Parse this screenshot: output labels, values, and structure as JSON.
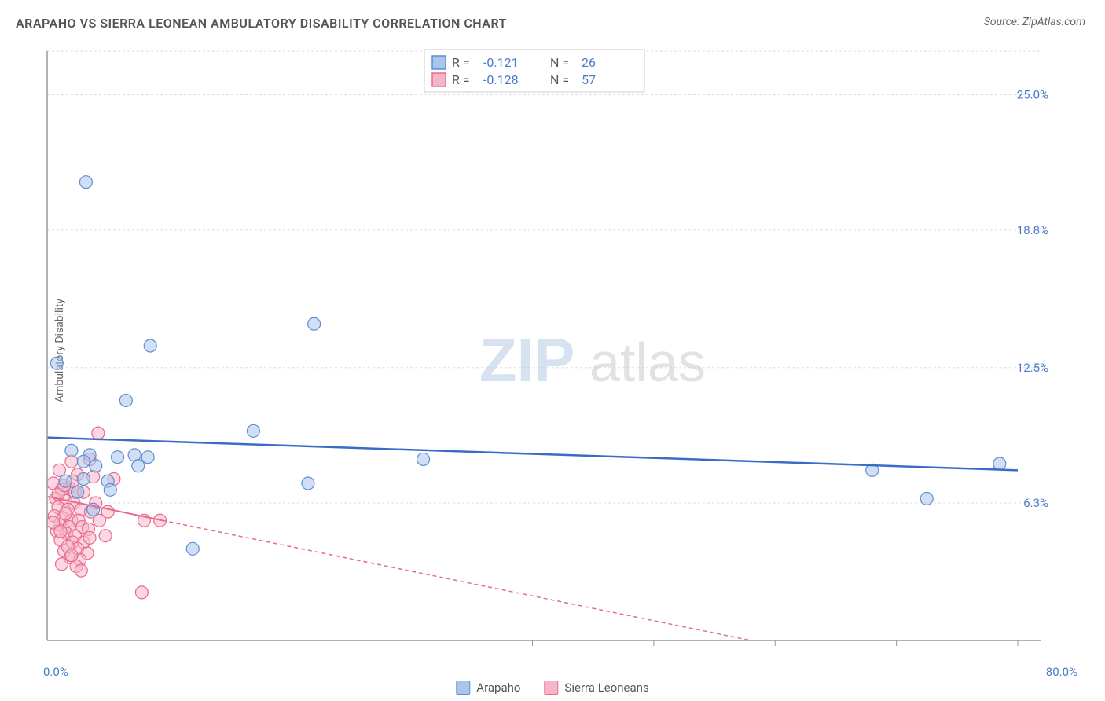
{
  "chart": {
    "type": "scatter",
    "title": "ARAPAHO VS SIERRA LEONEAN AMBULATORY DISABILITY CORRELATION CHART",
    "source": "Source: ZipAtlas.com",
    "ylabel": "Ambulatory Disability",
    "watermark_zip": "ZIP",
    "watermark_atlas": "atlas",
    "background_color": "#ffffff",
    "grid_color": "#dddddd",
    "axis_color": "#999999",
    "tick_label_color": "#4a7bc8",
    "xlim": [
      0,
      80
    ],
    "ylim": [
      0,
      27
    ],
    "ytick_values": [
      6.3,
      12.5,
      18.8,
      25.0
    ],
    "ytick_labels": [
      "6.3%",
      "12.5%",
      "18.8%",
      "25.0%"
    ],
    "xtick_min_label": "0.0%",
    "xtick_max_label": "80.0%",
    "xtick_minor_positions": [
      40,
      50,
      60,
      70,
      80
    ],
    "marker_radius": 8,
    "marker_opacity": 0.55,
    "series": {
      "arapaho": {
        "label": "Arapaho",
        "fill_color": "#a9c5ea",
        "stroke_color": "#5b8fd6",
        "trend_color": "#3a6cc7",
        "trend_dash": "none",
        "trend_width": 2.5,
        "R": "-0.121",
        "N": "26",
        "trend": {
          "x1": 0,
          "y1": 9.3,
          "x2": 80,
          "y2": 7.8
        },
        "points": [
          {
            "x": 3.2,
            "y": 21.0
          },
          {
            "x": 0.8,
            "y": 12.7
          },
          {
            "x": 8.5,
            "y": 13.5
          },
          {
            "x": 22.0,
            "y": 14.5
          },
          {
            "x": 6.5,
            "y": 11.0
          },
          {
            "x": 17.0,
            "y": 9.6
          },
          {
            "x": 2.0,
            "y": 8.7
          },
          {
            "x": 3.5,
            "y": 8.5
          },
          {
            "x": 3.0,
            "y": 8.2
          },
          {
            "x": 5.8,
            "y": 8.4
          },
          {
            "x": 7.2,
            "y": 8.5
          },
          {
            "x": 8.3,
            "y": 8.4
          },
          {
            "x": 4.0,
            "y": 8.0
          },
          {
            "x": 7.5,
            "y": 8.0
          },
          {
            "x": 31.0,
            "y": 8.3
          },
          {
            "x": 68.0,
            "y": 7.8
          },
          {
            "x": 78.5,
            "y": 8.1
          },
          {
            "x": 1.5,
            "y": 7.3
          },
          {
            "x": 3.0,
            "y": 7.4
          },
          {
            "x": 5.0,
            "y": 7.3
          },
          {
            "x": 5.2,
            "y": 6.9
          },
          {
            "x": 21.5,
            "y": 7.2
          },
          {
            "x": 72.5,
            "y": 6.5
          },
          {
            "x": 12.0,
            "y": 4.2
          },
          {
            "x": 3.8,
            "y": 6.0
          },
          {
            "x": 2.5,
            "y": 6.8
          }
        ]
      },
      "sierra_leoneans": {
        "label": "Sierra Leoneans",
        "fill_color": "#f5b6c8",
        "stroke_color": "#e86a8f",
        "trend_color": "#e86a8f",
        "trend_dash": "5,4",
        "trend_width": 1.5,
        "R": "-0.128",
        "N": "57",
        "trend": {
          "x1": 0,
          "y1": 6.6,
          "x2": 58,
          "y2": 0.0
        },
        "solid_trend_end": {
          "x": 9.5,
          "y": 5.5
        },
        "points": [
          {
            "x": 4.2,
            "y": 9.5
          },
          {
            "x": 2.0,
            "y": 8.2
          },
          {
            "x": 3.5,
            "y": 8.3
          },
          {
            "x": 1.0,
            "y": 7.8
          },
          {
            "x": 2.5,
            "y": 7.6
          },
          {
            "x": 3.8,
            "y": 7.5
          },
          {
            "x": 5.5,
            "y": 7.4
          },
          {
            "x": 0.5,
            "y": 7.2
          },
          {
            "x": 1.8,
            "y": 7.0
          },
          {
            "x": 1.2,
            "y": 6.9
          },
          {
            "x": 2.3,
            "y": 6.8
          },
          {
            "x": 3.0,
            "y": 6.8
          },
          {
            "x": 0.7,
            "y": 6.5
          },
          {
            "x": 1.5,
            "y": 6.4
          },
          {
            "x": 2.2,
            "y": 6.3
          },
          {
            "x": 4.0,
            "y": 6.3
          },
          {
            "x": 0.9,
            "y": 6.1
          },
          {
            "x": 1.7,
            "y": 6.0
          },
          {
            "x": 2.8,
            "y": 6.0
          },
          {
            "x": 3.6,
            "y": 5.9
          },
          {
            "x": 5.0,
            "y": 5.9
          },
          {
            "x": 0.6,
            "y": 5.7
          },
          {
            "x": 1.3,
            "y": 5.6
          },
          {
            "x": 2.0,
            "y": 5.5
          },
          {
            "x": 2.6,
            "y": 5.5
          },
          {
            "x": 4.3,
            "y": 5.5
          },
          {
            "x": 8.0,
            "y": 5.5
          },
          {
            "x": 9.3,
            "y": 5.5
          },
          {
            "x": 1.0,
            "y": 5.3
          },
          {
            "x": 1.8,
            "y": 5.2
          },
          {
            "x": 2.9,
            "y": 5.2
          },
          {
            "x": 3.4,
            "y": 5.1
          },
          {
            "x": 0.8,
            "y": 5.0
          },
          {
            "x": 1.6,
            "y": 4.9
          },
          {
            "x": 2.3,
            "y": 4.8
          },
          {
            "x": 4.8,
            "y": 4.8
          },
          {
            "x": 1.1,
            "y": 4.6
          },
          {
            "x": 2.1,
            "y": 4.5
          },
          {
            "x": 3.0,
            "y": 4.5
          },
          {
            "x": 2.5,
            "y": 4.2
          },
          {
            "x": 1.4,
            "y": 4.1
          },
          {
            "x": 3.3,
            "y": 4.0
          },
          {
            "x": 1.9,
            "y": 3.8
          },
          {
            "x": 2.7,
            "y": 3.7
          },
          {
            "x": 1.2,
            "y": 3.5
          },
          {
            "x": 2.4,
            "y": 3.4
          },
          {
            "x": 7.8,
            "y": 2.2
          },
          {
            "x": 0.9,
            "y": 6.7
          },
          {
            "x": 1.4,
            "y": 7.1
          },
          {
            "x": 2.1,
            "y": 7.3
          },
          {
            "x": 0.5,
            "y": 5.4
          },
          {
            "x": 1.1,
            "y": 5.0
          },
          {
            "x": 1.7,
            "y": 4.3
          },
          {
            "x": 2.0,
            "y": 3.9
          },
          {
            "x": 2.8,
            "y": 3.2
          },
          {
            "x": 3.5,
            "y": 4.7
          },
          {
            "x": 1.5,
            "y": 5.8
          }
        ]
      }
    },
    "legend_top": {
      "R_label": "R = ",
      "N_label": "N = "
    }
  }
}
